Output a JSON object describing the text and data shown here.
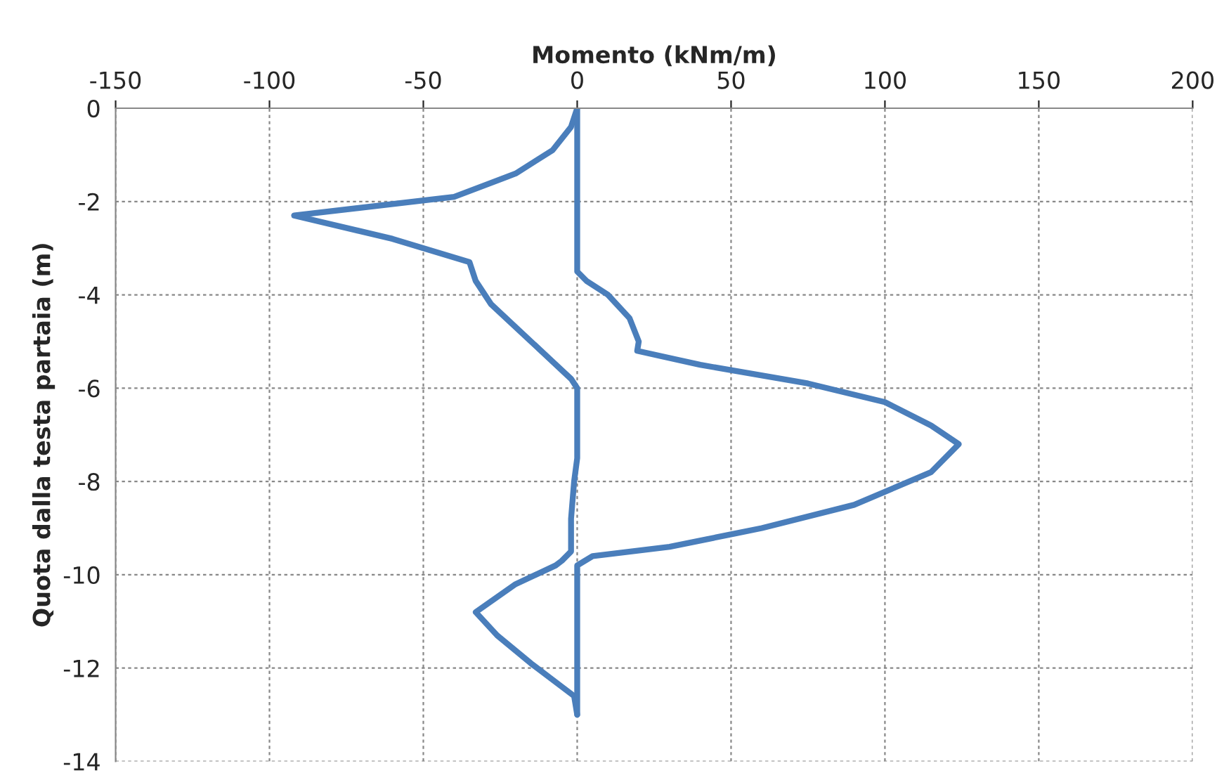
{
  "chart_data": {
    "type": "line",
    "xlabel": "Momento (kNm/m)",
    "ylabel": "Quota dalla testa partaia (m)",
    "xlim": [
      -150,
      200
    ],
    "xticks": [
      -150,
      -100,
      -50,
      0,
      50,
      100,
      150,
      200
    ],
    "ylim": [
      -14,
      0
    ],
    "yticks": [
      -14,
      -12,
      -10,
      -8,
      -6,
      -4,
      -2,
      0
    ],
    "grid": true,
    "marker": "none",
    "line_style": "solid",
    "legend": false,
    "series": [
      {
        "color": "#4a7ebb",
        "x": [
          0,
          -2,
          -8,
          -20,
          -40,
          -92,
          -60,
          -35,
          -33,
          -28,
          -15,
          -2,
          0,
          0,
          -1,
          -2,
          -2,
          -5,
          -7,
          -20,
          -33,
          -26,
          -15,
          -5,
          -1,
          0
        ],
        "values": [
          0,
          -0.4,
          -0.9,
          -1.4,
          -1.9,
          -2.3,
          -2.8,
          -3.3,
          -3.7,
          -4.2,
          -5.0,
          -5.8,
          -6.0,
          -7.5,
          -8.0,
          -8.8,
          -9.5,
          -9.7,
          -9.8,
          -10.2,
          -10.8,
          -11.3,
          -11.9,
          -12.4,
          -12.6,
          -13
        ]
      },
      {
        "color": "#4a7ebb",
        "x": [
          0,
          0,
          3,
          10,
          17,
          20,
          19.5,
          40,
          75,
          100,
          115,
          124,
          115,
          90,
          60,
          30,
          5,
          0,
          0
        ],
        "values": [
          0,
          -3.5,
          -3.7,
          -4.0,
          -4.5,
          -5.0,
          -5.2,
          -5.5,
          -5.9,
          -6.3,
          -6.8,
          -7.2,
          -7.8,
          -8.5,
          -9.0,
          -9.4,
          -9.6,
          -9.8,
          -13
        ]
      }
    ]
  }
}
